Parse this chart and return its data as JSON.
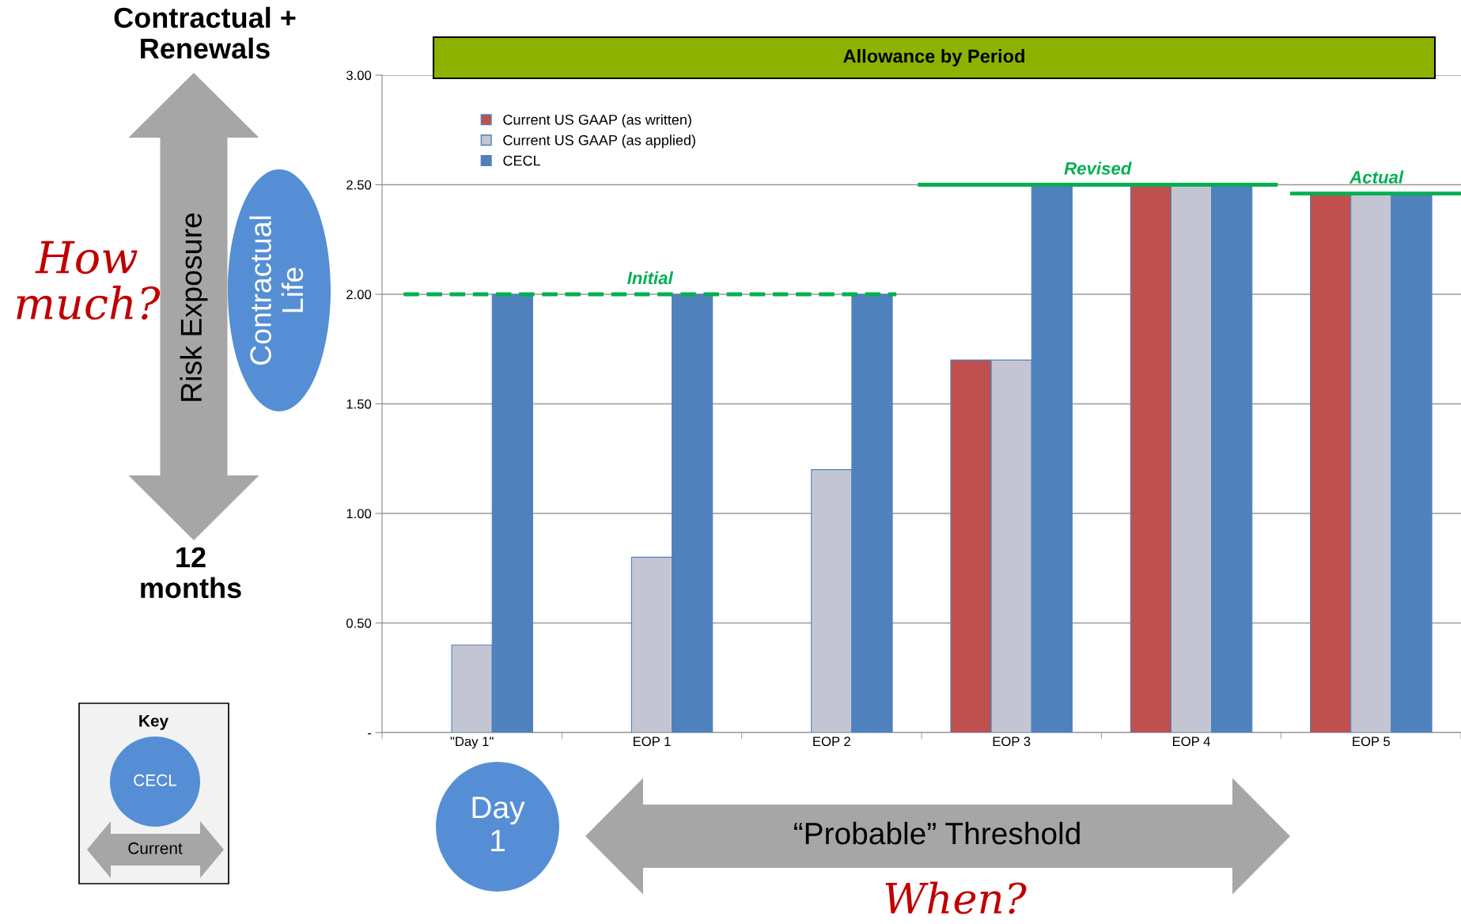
{
  "chart_data": {
    "type": "bar",
    "title": "Allowance by Period",
    "categories": [
      "\"Day 1\"",
      "EOP 1",
      "EOP 2",
      "EOP 3",
      "EOP 4",
      "EOP 5"
    ],
    "series": [
      {
        "name": "Current US GAAP (as written)",
        "color": "#c0504d",
        "values": [
          null,
          null,
          null,
          1.7,
          2.5,
          2.46
        ]
      },
      {
        "name": "Current US GAAP (as applied)",
        "color": "#c3c6d2",
        "values": [
          0.4,
          0.8,
          1.2,
          1.7,
          2.5,
          2.46
        ]
      },
      {
        "name": "CECL",
        "color": "#4f81bd",
        "values": [
          2.0,
          2.0,
          2.0,
          2.5,
          2.5,
          2.46
        ]
      }
    ],
    "ylim": [
      0,
      3.0
    ],
    "yticks": [
      {
        "value": 0,
        "label": "-"
      },
      {
        "value": 0.5,
        "label": "0.50"
      },
      {
        "value": 1.0,
        "label": "1.00"
      },
      {
        "value": 1.5,
        "label": "1.50"
      },
      {
        "value": 2.0,
        "label": "2.00"
      },
      {
        "value": 2.5,
        "label": "2.50"
      },
      {
        "value": 3.0,
        "label": "3.00"
      }
    ],
    "grid": "y",
    "legend": "top left",
    "ref_lines": [
      {
        "axis": "y",
        "value": 2.0,
        "label": "Initial",
        "color": "#00b050",
        "line_style": "dashed"
      },
      {
        "axis": "y",
        "value": 2.5,
        "label": "Revised",
        "color": "#00b050",
        "line_style": "solid"
      },
      {
        "axis": "y",
        "value": 2.46,
        "label": "Actual",
        "color": "#00b050",
        "line_style": "solid"
      }
    ],
    "annotations": [
      "Contractual +\nRenewals",
      "Risk Exposure",
      "Contractual\nLife",
      "How\nmuch?",
      "12\nmonths",
      "Key",
      "CECL",
      "Current",
      "Day\n1",
      "“Probable” Threshold",
      "When?"
    ]
  }
}
